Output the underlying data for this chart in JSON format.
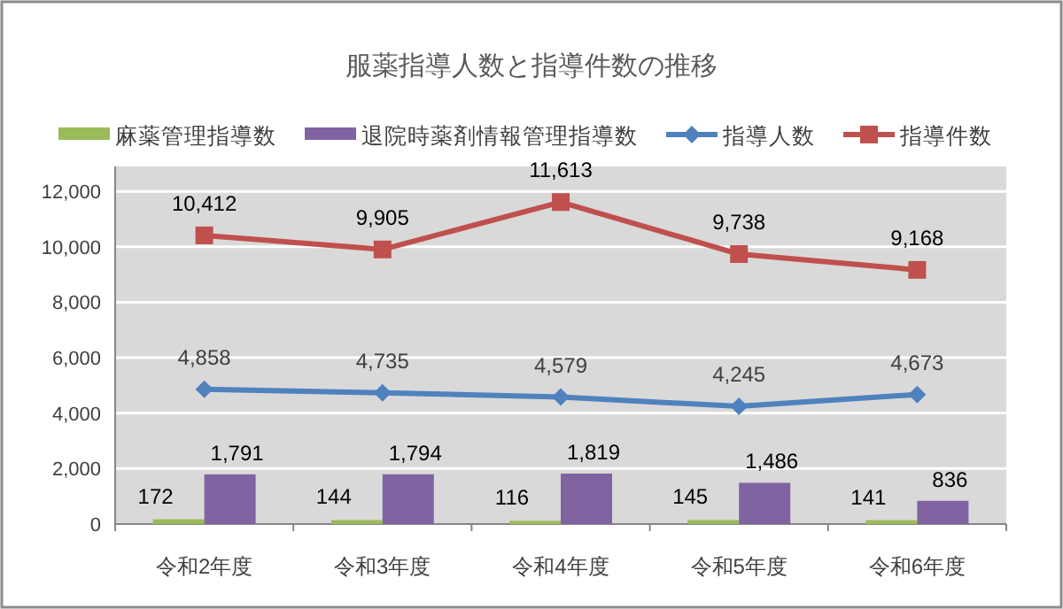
{
  "chart_data": {
    "type": "bar",
    "title": "服薬指導人数と指導件数の推移",
    "categories": [
      "令和2年度",
      "令和3年度",
      "令和4年度",
      "令和5年度",
      "令和6年度"
    ],
    "series": [
      {
        "name": "麻薬管理指導数",
        "color": "#9bbb59",
        "values": [
          172,
          144,
          116,
          145,
          141
        ],
        "value_labels": [
          "172",
          "144",
          "116",
          "145",
          "141"
        ]
      },
      {
        "name": "退院時薬剤情報管理指導数",
        "color": "#8064a2",
        "values": [
          1791,
          1794,
          1819,
          1486,
          836
        ],
        "value_labels": [
          "1,791",
          "1,794",
          "1,819",
          "1,486",
          "836"
        ]
      },
      {
        "name": "指導人数",
        "type": "line",
        "color": "#4f81bd",
        "marker": "diamond",
        "values": [
          4858,
          4735,
          4579,
          4245,
          4673
        ],
        "value_labels": [
          "4,858",
          "4,735",
          "4,579",
          "4,245",
          "4,673"
        ]
      },
      {
        "name": "指導件数",
        "type": "line",
        "color": "#c0504d",
        "marker": "square",
        "values": [
          10412,
          9905,
          11613,
          9738,
          9168
        ],
        "value_labels": [
          "10,412",
          "9,905",
          "11,613",
          "9,738",
          "9,168"
        ]
      }
    ],
    "ylim": [
      0,
      12900
    ],
    "yticks": [
      0,
      {
        "value": 2000,
        "label": "2,000"
      },
      {
        "value": 4000,
        "label": "4,000"
      },
      {
        "value": 6000,
        "label": "6,000"
      },
      {
        "value": 8000,
        "label": "8,000"
      },
      {
        "value": 10000,
        "label": "10,000"
      },
      {
        "value": 12000,
        "label": "12,000"
      }
    ],
    "grid": "y",
    "legend": "top"
  }
}
